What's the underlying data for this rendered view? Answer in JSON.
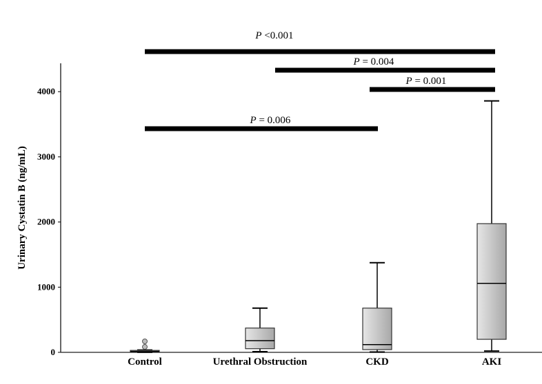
{
  "chart_data": {
    "type": "box",
    "title": "",
    "xlabel": "",
    "ylabel": "Urinary Cystatin B (ng/mL)",
    "ylim": [
      0,
      4400
    ],
    "yticks": [
      "0",
      "1000",
      "2000",
      "3000",
      "4000"
    ],
    "grid": false,
    "categories": [
      "Control",
      "Urethral Obstruction",
      "CKD",
      "AKI"
    ],
    "boxes": [
      {
        "min": 0,
        "q1": 5,
        "median": 15,
        "q3": 30,
        "max": 35,
        "outliers": [
          84,
          169
        ]
      },
      {
        "min": 10,
        "q1": 56,
        "median": 180,
        "q3": 373,
        "max": 679,
        "outliers": []
      },
      {
        "min": 5,
        "q1": 42,
        "median": 119,
        "q3": 679,
        "max": 1376,
        "outliers": []
      },
      {
        "min": 20,
        "q1": 200,
        "median": 1059,
        "q3": 1975,
        "max": 3858,
        "outliers": []
      }
    ],
    "comparisons": [
      {
        "from": "Control",
        "to": "AKI",
        "label_p": "P",
        "label_rest": " <0.001"
      },
      {
        "from": "Urethral Obstruction",
        "to": "AKI",
        "label_p": "P",
        "label_rest": " = 0.004"
      },
      {
        "from": "CKD",
        "to": "AKI",
        "label_p": "P",
        "label_rest": " = 0.001"
      },
      {
        "from": "Control",
        "to": "CKD",
        "label_p": "P",
        "label_rest": " = 0.006"
      }
    ],
    "colors": {
      "box_fill_light": "#e6e6e6",
      "box_fill_dark": "#a8a8a8",
      "line": "#000000",
      "outlier": "#bdbdbd"
    }
  }
}
